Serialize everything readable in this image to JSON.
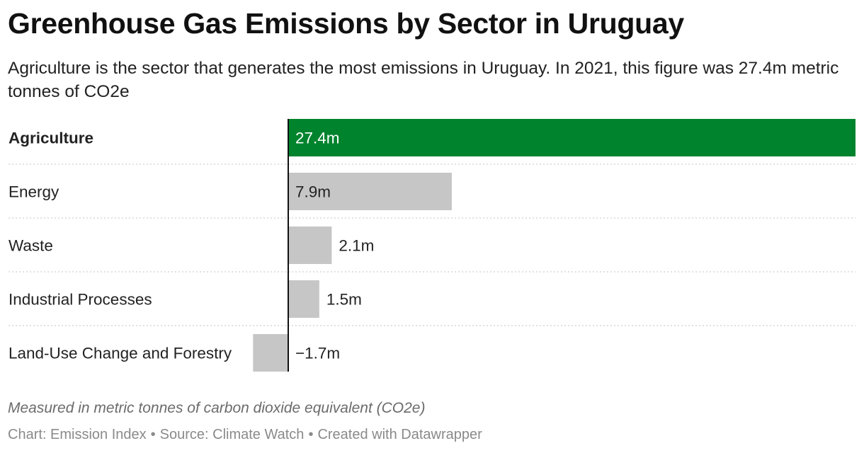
{
  "header": {
    "title": "Greenhouse Gas Emissions by Sector in Uruguay",
    "subtitle": "Agriculture is the sector that generates the most emissions in Uruguay. In 2021, this figure was 27.4m metric tonnes of CO2e"
  },
  "footer": {
    "notes": "Measured in metric tonnes of carbon dioxide equivalent (CO2e)",
    "chart_by": "Chart: Emission Index",
    "source": "Source: Climate Watch",
    "created_with": "Created with Datawrapper",
    "separator": "•"
  },
  "colors": {
    "highlight": "#00832d",
    "bar": "#c6c6c6",
    "axis": "#111111"
  },
  "chart_data": {
    "type": "bar",
    "orientation": "horizontal",
    "categories": [
      "Agriculture",
      "Energy",
      "Waste",
      "Industrial Processes",
      "Land-Use Change and Forestry"
    ],
    "values": [
      27.4,
      7.9,
      2.1,
      1.5,
      -1.7
    ],
    "value_labels": [
      "27.4m",
      "7.9m",
      "2.1m",
      "1.5m",
      "−1.7m"
    ],
    "highlighted": "Agriculture",
    "unit": "m",
    "grid": false
  }
}
